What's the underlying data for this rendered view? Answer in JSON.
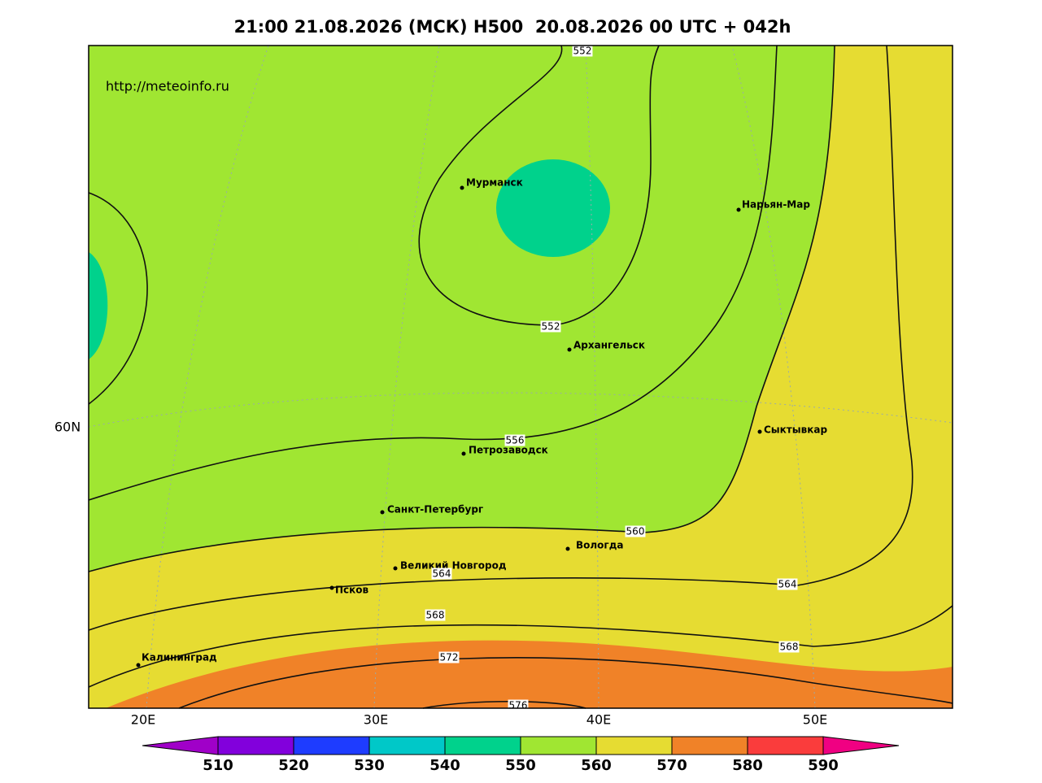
{
  "header": {
    "title": "21:00 21.08.2026 (МСК) H500  20.08.2026 00 UTC + 042h"
  },
  "map": {
    "source_url": "http://meteoinfo.ru",
    "lat_labels": [
      "60N"
    ],
    "lon_labels": [
      "20E",
      "30E",
      "40E",
      "50E"
    ],
    "cities": [
      "Мурманск",
      "Нарьян-Мар",
      "Архангельск",
      "Сыктывкар",
      "Петрозаводск",
      "Санкт-Петербург",
      "Вологда",
      "Великий Новгород",
      "Псков",
      "Калининград"
    ],
    "contour_labels": [
      552,
      552,
      556,
      560,
      564,
      564,
      568,
      568,
      572,
      576
    ]
  },
  "colorbar": {
    "ticks": [
      510,
      520,
      530,
      540,
      550,
      560,
      570,
      580,
      590
    ],
    "colors": [
      "#a000c8",
      "#8200dc",
      "#1e3cff",
      "#00c8c8",
      "#00d28c",
      "#a0e632",
      "#e6dc32",
      "#f08228",
      "#fa3c3c",
      "#f00082"
    ]
  }
}
